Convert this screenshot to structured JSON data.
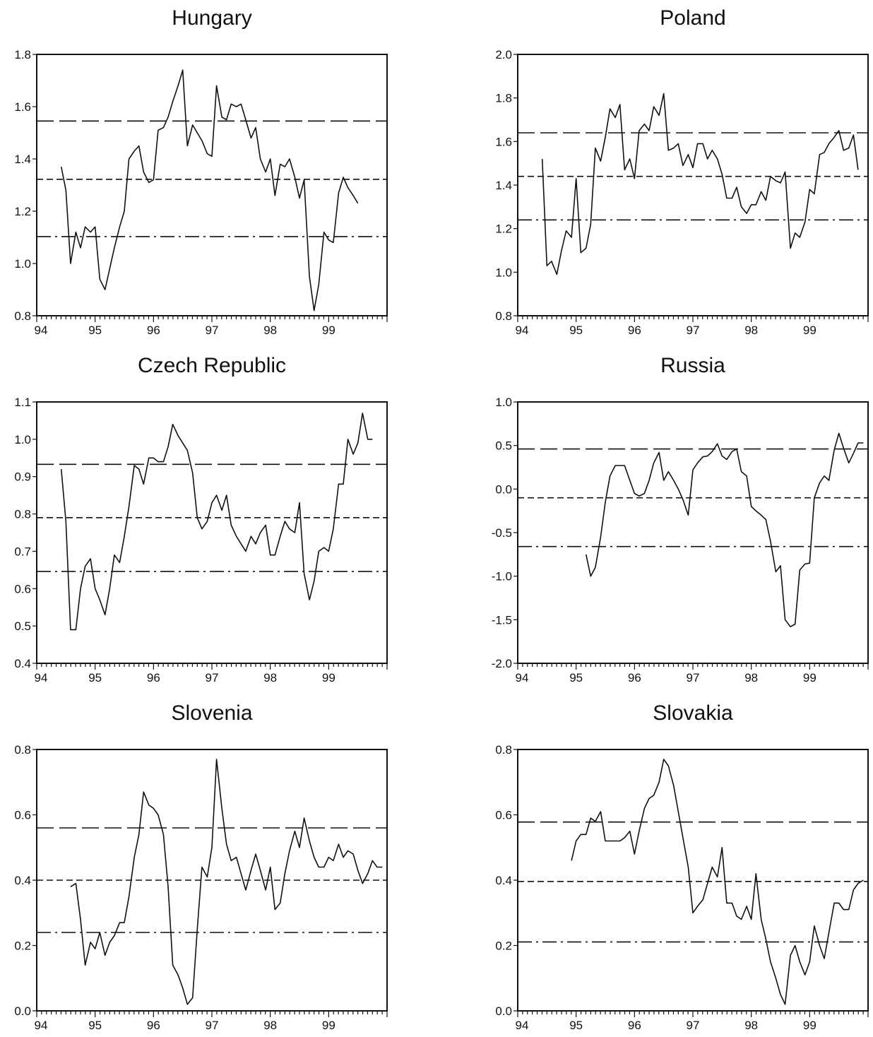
{
  "chart_data": [
    {
      "type": "line",
      "title": "Hungary",
      "xlim": [
        94,
        100
      ],
      "ylim": [
        0.8,
        1.8
      ],
      "x_ticks": [
        "94",
        "95",
        "96",
        "97",
        "98",
        "99"
      ],
      "y_ticks": [
        "0.8",
        "1.0",
        "1.2",
        "1.4",
        "1.6",
        "1.8"
      ],
      "reference_lines": [
        {
          "value": 1.545,
          "style": "long-dash"
        },
        {
          "value": 1.322,
          "style": "short-dash"
        },
        {
          "value": 1.103,
          "style": "dash-dot"
        }
      ],
      "series": [
        {
          "x": [
            94.42,
            94.5,
            94.58,
            94.67,
            94.75,
            94.83,
            94.92,
            95.0,
            95.08,
            95.17,
            95.25,
            95.33,
            95.42,
            95.5,
            95.58,
            95.67,
            95.75,
            95.83,
            95.92,
            96.0,
            96.08,
            96.17,
            96.25,
            96.33,
            96.42,
            96.5,
            96.58,
            96.67,
            96.75,
            96.83,
            96.92,
            97.0,
            97.08,
            97.17,
            97.25,
            97.33,
            97.42,
            97.5,
            97.58,
            97.67,
            97.75,
            97.83,
            97.92,
            98.0,
            98.08,
            98.17,
            98.25,
            98.33,
            98.42,
            98.5,
            98.58,
            98.67,
            98.75,
            98.83,
            98.92,
            99.0,
            99.08,
            99.17,
            99.25,
            99.33,
            99.42,
            99.5
          ],
          "y": [
            1.37,
            1.28,
            1.0,
            1.12,
            1.06,
            1.14,
            1.12,
            1.14,
            0.94,
            0.9,
            0.98,
            1.06,
            1.14,
            1.2,
            1.4,
            1.43,
            1.45,
            1.35,
            1.31,
            1.32,
            1.51,
            1.52,
            1.56,
            1.62,
            1.68,
            1.74,
            1.45,
            1.53,
            1.5,
            1.47,
            1.42,
            1.41,
            1.68,
            1.56,
            1.55,
            1.61,
            1.6,
            1.61,
            1.55,
            1.48,
            1.52,
            1.4,
            1.35,
            1.4,
            1.26,
            1.38,
            1.37,
            1.4,
            1.33,
            1.25,
            1.32,
            0.95,
            0.82,
            0.92,
            1.12,
            1.09,
            1.08,
            1.27,
            1.33,
            1.29,
            1.26,
            1.23
          ]
        }
      ]
    },
    {
      "type": "line",
      "title": "Poland",
      "xlim": [
        94,
        100
      ],
      "ylim": [
        0.8,
        2.0
      ],
      "x_ticks": [
        "94",
        "95",
        "96",
        "97",
        "98",
        "99"
      ],
      "y_ticks": [
        "0.8",
        "1.0",
        "1.2",
        "1.4",
        "1.6",
        "1.8",
        "2.0"
      ],
      "reference_lines": [
        {
          "value": 1.64,
          "style": "long-dash"
        },
        {
          "value": 1.44,
          "style": "short-dash"
        },
        {
          "value": 1.24,
          "style": "dash-dot"
        }
      ],
      "series": [
        {
          "x": [
            94.42,
            94.5,
            94.58,
            94.67,
            94.75,
            94.83,
            94.92,
            95.0,
            95.08,
            95.17,
            95.25,
            95.33,
            95.42,
            95.5,
            95.58,
            95.67,
            95.75,
            95.83,
            95.92,
            96.0,
            96.08,
            96.17,
            96.25,
            96.33,
            96.42,
            96.5,
            96.58,
            96.67,
            96.75,
            96.83,
            96.92,
            97.0,
            97.08,
            97.17,
            97.25,
            97.33,
            97.42,
            97.5,
            97.58,
            97.67,
            97.75,
            97.83,
            97.92,
            98.0,
            98.08,
            98.17,
            98.25,
            98.33,
            98.42,
            98.5,
            98.58,
            98.67,
            98.75,
            98.83,
            98.92,
            99.0,
            99.08,
            99.17,
            99.25,
            99.33,
            99.42,
            99.5,
            99.58,
            99.67,
            99.75,
            99.83
          ],
          "y": [
            1.52,
            1.03,
            1.05,
            0.99,
            1.1,
            1.19,
            1.16,
            1.43,
            1.09,
            1.11,
            1.22,
            1.57,
            1.51,
            1.62,
            1.75,
            1.71,
            1.77,
            1.47,
            1.52,
            1.43,
            1.65,
            1.68,
            1.65,
            1.76,
            1.72,
            1.82,
            1.56,
            1.57,
            1.59,
            1.49,
            1.54,
            1.48,
            1.59,
            1.59,
            1.52,
            1.56,
            1.52,
            1.45,
            1.34,
            1.34,
            1.39,
            1.3,
            1.27,
            1.31,
            1.31,
            1.37,
            1.33,
            1.44,
            1.42,
            1.41,
            1.46,
            1.11,
            1.18,
            1.16,
            1.23,
            1.38,
            1.36,
            1.54,
            1.55,
            1.59,
            1.62,
            1.65,
            1.56,
            1.57,
            1.63,
            1.47
          ]
        }
      ]
    },
    {
      "type": "line",
      "title": "Czech Republic",
      "xlim": [
        94,
        100
      ],
      "ylim": [
        0.4,
        1.1
      ],
      "x_ticks": [
        "94",
        "95",
        "96",
        "97",
        "98",
        "99"
      ],
      "y_ticks": [
        "0.4",
        "0.5",
        "0.6",
        "0.7",
        "0.8",
        "0.9",
        "1.0",
        "1.1"
      ],
      "reference_lines": [
        {
          "value": 0.933,
          "style": "long-dash"
        },
        {
          "value": 0.79,
          "style": "short-dash"
        },
        {
          "value": 0.646,
          "style": "dash-dot"
        }
      ],
      "series": [
        {
          "x": [
            94.42,
            94.5,
            94.58,
            94.67,
            94.75,
            94.83,
            94.92,
            95.0,
            95.08,
            95.17,
            95.25,
            95.33,
            95.42,
            95.5,
            95.58,
            95.67,
            95.75,
            95.83,
            95.92,
            96.0,
            96.08,
            96.17,
            96.25,
            96.33,
            96.42,
            96.5,
            96.58,
            96.67,
            96.75,
            96.83,
            96.92,
            97.0,
            97.08,
            97.17,
            97.25,
            97.33,
            97.42,
            97.5,
            97.58,
            97.67,
            97.75,
            97.83,
            97.92,
            98.0,
            98.08,
            98.17,
            98.25,
            98.33,
            98.42,
            98.5,
            98.58,
            98.67,
            98.75,
            98.83,
            98.92,
            99.0,
            99.08,
            99.17,
            99.25,
            99.33,
            99.42,
            99.5,
            99.58,
            99.67,
            99.75
          ],
          "y": [
            0.92,
            0.78,
            0.49,
            0.49,
            0.6,
            0.66,
            0.68,
            0.6,
            0.57,
            0.53,
            0.6,
            0.69,
            0.67,
            0.74,
            0.82,
            0.93,
            0.92,
            0.88,
            0.95,
            0.95,
            0.94,
            0.94,
            0.98,
            1.04,
            1.01,
            0.99,
            0.97,
            0.91,
            0.79,
            0.76,
            0.78,
            0.83,
            0.85,
            0.81,
            0.85,
            0.77,
            0.74,
            0.72,
            0.7,
            0.74,
            0.72,
            0.75,
            0.77,
            0.69,
            0.69,
            0.74,
            0.78,
            0.76,
            0.75,
            0.83,
            0.64,
            0.57,
            0.62,
            0.7,
            0.71,
            0.7,
            0.76,
            0.88,
            0.88,
            1.0,
            0.96,
            0.99,
            1.07,
            1.0,
            1.0
          ]
        }
      ]
    },
    {
      "type": "line",
      "title": "Russia",
      "xlim": [
        94,
        100
      ],
      "ylim": [
        -2.0,
        1.0
      ],
      "x_ticks": [
        "94",
        "95",
        "96",
        "97",
        "98",
        "99"
      ],
      "y_ticks": [
        "-2.0",
        "-1.5",
        "-1.0",
        "-0.5",
        "0.0",
        "0.5",
        "1.0"
      ],
      "reference_lines": [
        {
          "value": 0.46,
          "style": "long-dash"
        },
        {
          "value": -0.1,
          "style": "short-dash"
        },
        {
          "value": -0.66,
          "style": "dash-dot"
        }
      ],
      "series": [
        {
          "x": [
            95.17,
            95.25,
            95.33,
            95.42,
            95.5,
            95.58,
            95.67,
            95.75,
            95.83,
            95.92,
            96.0,
            96.08,
            96.17,
            96.25,
            96.33,
            96.42,
            96.5,
            96.58,
            96.67,
            96.75,
            96.83,
            96.92,
            97.0,
            97.08,
            97.17,
            97.25,
            97.33,
            97.42,
            97.5,
            97.58,
            97.67,
            97.75,
            97.83,
            97.92,
            98.0,
            98.08,
            98.17,
            98.25,
            98.33,
            98.42,
            98.5,
            98.58,
            98.67,
            98.75,
            98.83,
            98.92,
            99.0,
            99.08,
            99.17,
            99.25,
            99.33,
            99.42,
            99.5,
            99.58,
            99.67,
            99.75,
            99.83,
            99.92
          ],
          "y": [
            -0.75,
            -1.0,
            -0.9,
            -0.55,
            -0.15,
            0.15,
            0.27,
            0.27,
            0.27,
            0.1,
            -0.05,
            -0.08,
            -0.05,
            0.1,
            0.3,
            0.42,
            0.1,
            0.2,
            0.1,
            0.0,
            -0.12,
            -0.3,
            0.22,
            0.3,
            0.37,
            0.38,
            0.43,
            0.52,
            0.38,
            0.34,
            0.43,
            0.46,
            0.2,
            0.15,
            -0.2,
            -0.25,
            -0.3,
            -0.35,
            -0.6,
            -0.95,
            -0.88,
            -1.5,
            -1.58,
            -1.55,
            -0.93,
            -0.86,
            -0.85,
            -0.1,
            0.07,
            0.15,
            0.1,
            0.45,
            0.64,
            0.47,
            0.3,
            0.41,
            0.53,
            0.53
          ]
        }
      ]
    },
    {
      "type": "line",
      "title": "Slovenia",
      "xlim": [
        94,
        100
      ],
      "ylim": [
        0.0,
        0.8
      ],
      "x_ticks": [
        "94",
        "95",
        "96",
        "97",
        "98",
        "99"
      ],
      "y_ticks": [
        "0.0",
        "0.2",
        "0.4",
        "0.6",
        "0.8"
      ],
      "reference_lines": [
        {
          "value": 0.56,
          "style": "long-dash"
        },
        {
          "value": 0.4,
          "style": "short-dash"
        },
        {
          "value": 0.24,
          "style": "dash-dot"
        }
      ],
      "series": [
        {
          "x": [
            94.58,
            94.67,
            94.75,
            94.83,
            94.92,
            95.0,
            95.08,
            95.17,
            95.25,
            95.33,
            95.42,
            95.5,
            95.58,
            95.67,
            95.75,
            95.83,
            95.92,
            96.0,
            96.08,
            96.17,
            96.25,
            96.33,
            96.42,
            96.5,
            96.58,
            96.67,
            96.75,
            96.83,
            96.92,
            97.0,
            97.08,
            97.17,
            97.25,
            97.33,
            97.42,
            97.5,
            97.58,
            97.67,
            97.75,
            97.83,
            97.92,
            98.0,
            98.08,
            98.17,
            98.25,
            98.33,
            98.42,
            98.5,
            98.58,
            98.67,
            98.75,
            98.83,
            98.92,
            99.0,
            99.08,
            99.17,
            99.25,
            99.33,
            99.42,
            99.5,
            99.58,
            99.67,
            99.75,
            99.83,
            99.92
          ],
          "y": [
            0.38,
            0.39,
            0.28,
            0.14,
            0.21,
            0.19,
            0.24,
            0.17,
            0.21,
            0.23,
            0.27,
            0.27,
            0.35,
            0.47,
            0.54,
            0.67,
            0.63,
            0.62,
            0.6,
            0.54,
            0.38,
            0.14,
            0.11,
            0.07,
            0.02,
            0.04,
            0.25,
            0.44,
            0.41,
            0.5,
            0.77,
            0.62,
            0.51,
            0.46,
            0.47,
            0.42,
            0.37,
            0.43,
            0.48,
            0.43,
            0.37,
            0.44,
            0.31,
            0.33,
            0.42,
            0.49,
            0.55,
            0.5,
            0.59,
            0.52,
            0.47,
            0.44,
            0.44,
            0.47,
            0.46,
            0.51,
            0.47,
            0.49,
            0.48,
            0.43,
            0.39,
            0.42,
            0.46,
            0.44,
            0.44
          ]
        }
      ]
    },
    {
      "type": "line",
      "title": "Slovakia",
      "xlim": [
        94,
        100
      ],
      "ylim": [
        0.0,
        0.8
      ],
      "x_ticks": [
        "94",
        "95",
        "96",
        "97",
        "98",
        "99"
      ],
      "y_ticks": [
        "0.0",
        "0.2",
        "0.4",
        "0.6",
        "0.8"
      ],
      "reference_lines": [
        {
          "value": 0.578,
          "style": "long-dash"
        },
        {
          "value": 0.396,
          "style": "short-dash"
        },
        {
          "value": 0.211,
          "style": "dash-dot"
        }
      ],
      "series": [
        {
          "x": [
            94.92,
            95.0,
            95.08,
            95.17,
            95.25,
            95.33,
            95.42,
            95.5,
            95.58,
            95.67,
            95.75,
            95.83,
            95.92,
            96.0,
            96.08,
            96.17,
            96.25,
            96.33,
            96.42,
            96.5,
            96.58,
            96.67,
            96.75,
            96.83,
            96.92,
            97.0,
            97.08,
            97.17,
            97.25,
            97.33,
            97.42,
            97.5,
            97.58,
            97.67,
            97.75,
            97.83,
            97.92,
            98.0,
            98.08,
            98.17,
            98.25,
            98.33,
            98.42,
            98.5,
            98.58,
            98.67,
            98.75,
            98.83,
            98.92,
            99.0,
            99.08,
            99.17,
            99.25,
            99.33,
            99.42,
            99.5,
            99.58,
            99.67,
            99.75,
            99.83,
            99.92
          ],
          "y": [
            0.46,
            0.52,
            0.54,
            0.54,
            0.59,
            0.58,
            0.61,
            0.52,
            0.52,
            0.52,
            0.52,
            0.53,
            0.55,
            0.48,
            0.55,
            0.62,
            0.65,
            0.66,
            0.7,
            0.77,
            0.75,
            0.69,
            0.61,
            0.53,
            0.44,
            0.3,
            0.32,
            0.34,
            0.39,
            0.44,
            0.41,
            0.5,
            0.33,
            0.33,
            0.29,
            0.28,
            0.32,
            0.28,
            0.42,
            0.28,
            0.22,
            0.15,
            0.1,
            0.05,
            0.02,
            0.17,
            0.2,
            0.15,
            0.11,
            0.15,
            0.26,
            0.2,
            0.16,
            0.24,
            0.33,
            0.33,
            0.31,
            0.31,
            0.37,
            0.39,
            0.4
          ]
        }
      ]
    }
  ]
}
